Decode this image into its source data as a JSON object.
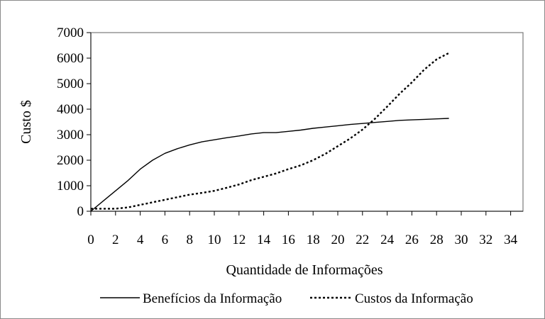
{
  "chart_data": {
    "type": "line",
    "title": "",
    "xlabel": "Quantidade de Informações",
    "ylabel": "Custo $",
    "xlim": [
      0,
      35
    ],
    "ylim": [
      0,
      7000
    ],
    "x_ticks": [
      0,
      2,
      4,
      6,
      8,
      10,
      12,
      14,
      16,
      18,
      20,
      22,
      24,
      26,
      28,
      30,
      32,
      34
    ],
    "y_ticks": [
      0,
      1000,
      2000,
      3000,
      4000,
      5000,
      6000,
      7000
    ],
    "grid": false,
    "legend_position": "bottom",
    "series": [
      {
        "name": "Benefícios da Informação",
        "line_style": "solid",
        "color": "#000000",
        "x": [
          0,
          1,
          2,
          3,
          4,
          5,
          6,
          7,
          8,
          9,
          10,
          11,
          12,
          13,
          14,
          15,
          16,
          17,
          18,
          19,
          20,
          21,
          22,
          23,
          24,
          25,
          26,
          27,
          28,
          29
        ],
        "y": [
          0,
          400,
          800,
          1200,
          1650,
          2000,
          2270,
          2450,
          2600,
          2720,
          2800,
          2880,
          2950,
          3030,
          3080,
          3080,
          3130,
          3180,
          3250,
          3300,
          3350,
          3400,
          3440,
          3480,
          3520,
          3560,
          3580,
          3600,
          3620,
          3640
        ]
      },
      {
        "name": "Custos da Informação",
        "line_style": "dotted",
        "color": "#000000",
        "x": [
          0,
          1,
          2,
          3,
          4,
          5,
          6,
          7,
          8,
          9,
          10,
          11,
          12,
          13,
          14,
          15,
          16,
          17,
          18,
          19,
          20,
          21,
          22,
          23,
          24,
          25,
          26,
          27,
          28,
          29
        ],
        "y": [
          100,
          100,
          100,
          150,
          250,
          350,
          450,
          550,
          650,
          720,
          800,
          920,
          1050,
          1220,
          1350,
          1480,
          1650,
          1800,
          2000,
          2250,
          2550,
          2850,
          3200,
          3620,
          4100,
          4600,
          5050,
          5550,
          5950,
          6200
        ]
      }
    ]
  }
}
